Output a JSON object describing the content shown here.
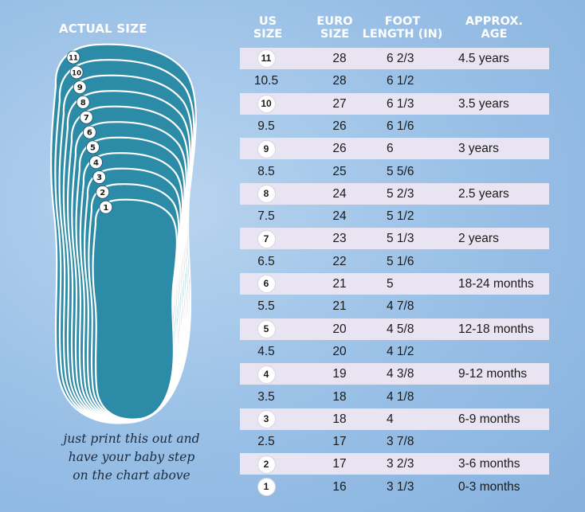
{
  "left_panel": {
    "title": "ACTUAL SIZE",
    "foot_sizes": [
      "1",
      "2",
      "3",
      "4",
      "5",
      "6",
      "7",
      "8",
      "9",
      "10",
      "11"
    ],
    "tagline": [
      "just print this out and",
      "have your baby step",
      "on the chart above"
    ],
    "colors": {
      "foot_fill": "#2c8ba6",
      "outline": "#ffffff"
    }
  },
  "table": {
    "headers": {
      "us": [
        "US",
        "SIZE"
      ],
      "euro": [
        "EURO",
        "SIZE"
      ],
      "foot": [
        "FOOT",
        "LENGTH (IN)"
      ],
      "age": [
        "APPROX.",
        "AGE"
      ]
    },
    "rows": [
      {
        "us": "11",
        "euro": "28",
        "foot": "6 2/3",
        "age": "4.5 years",
        "whole": true
      },
      {
        "us": "10.5",
        "euro": "28",
        "foot": "6 1/2",
        "age": "",
        "whole": false
      },
      {
        "us": "10",
        "euro": "27",
        "foot": "6 1/3",
        "age": "3.5 years",
        "whole": true
      },
      {
        "us": "9.5",
        "euro": "26",
        "foot": "6 1/6",
        "age": "",
        "whole": false
      },
      {
        "us": "9",
        "euro": "26",
        "foot": "6",
        "age": "3 years",
        "whole": true
      },
      {
        "us": "8.5",
        "euro": "25",
        "foot": "5 5/6",
        "age": "",
        "whole": false
      },
      {
        "us": "8",
        "euro": "24",
        "foot": "5 2/3",
        "age": "2.5 years",
        "whole": true
      },
      {
        "us": "7.5",
        "euro": "24",
        "foot": "5 1/2",
        "age": "",
        "whole": false
      },
      {
        "us": "7",
        "euro": "23",
        "foot": "5 1/3",
        "age": "2 years",
        "whole": true
      },
      {
        "us": "6.5",
        "euro": "22",
        "foot": "5 1/6",
        "age": "",
        "whole": false
      },
      {
        "us": "6",
        "euro": "21",
        "foot": "5",
        "age": "18-24 months",
        "whole": true
      },
      {
        "us": "5.5",
        "euro": "21",
        "foot": "4 7/8",
        "age": "",
        "whole": false
      },
      {
        "us": "5",
        "euro": "20",
        "foot": "4 5/8",
        "age": "12-18 months",
        "whole": true
      },
      {
        "us": "4.5",
        "euro": "20",
        "foot": "4 1/2",
        "age": "",
        "whole": false
      },
      {
        "us": "4",
        "euro": "19",
        "foot": "4 3/8",
        "age": "9-12 months",
        "whole": true
      },
      {
        "us": "3.5",
        "euro": "18",
        "foot": "4 1/8",
        "age": "",
        "whole": false
      },
      {
        "us": "3",
        "euro": "18",
        "foot": "4",
        "age": "6-9 months",
        "whole": true
      },
      {
        "us": "2.5",
        "euro": "17",
        "foot": "3 7/8",
        "age": "",
        "whole": false
      },
      {
        "us": "2",
        "euro": "17",
        "foot": "3 2/3",
        "age": "3-6 months",
        "whole": true
      },
      {
        "us": "1",
        "euro": "16",
        "foot": "3 1/3",
        "age": "0-3 months",
        "whole": true
      }
    ],
    "colors": {
      "shaded_row": "#e9e4f2",
      "header_text": "#ffffff"
    }
  }
}
